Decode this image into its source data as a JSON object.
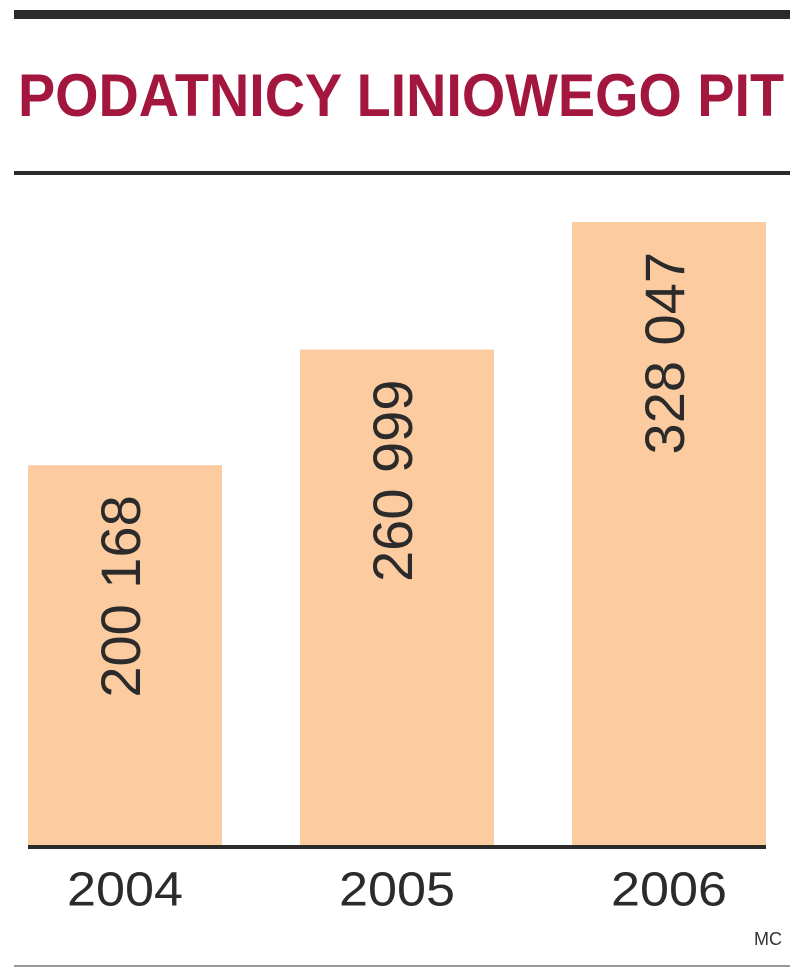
{
  "chart_data": {
    "type": "bar",
    "title": "PODATNICY LINIOWEGO PIT",
    "categories": [
      "2004",
      "2005",
      "2006"
    ],
    "values": [
      200168,
      260999,
      328047
    ],
    "value_labels": [
      "200 168",
      "260 999",
      "328 047"
    ],
    "color": "#fccca0",
    "credit": "MC"
  }
}
